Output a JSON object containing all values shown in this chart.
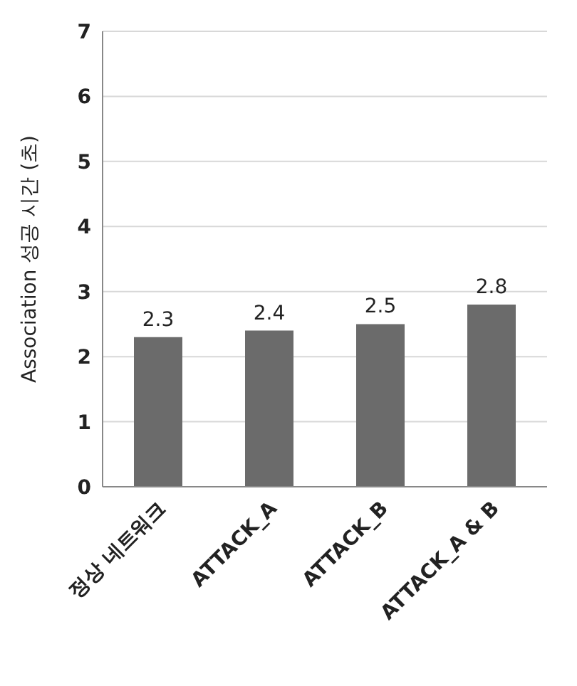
{
  "chart_data": {
    "type": "bar",
    "ylabel": "Association 성공 시간 (초)",
    "categories": [
      "정상 네트워크",
      "ATTACK_A",
      "ATTACK_B",
      "ATTACK_A & B"
    ],
    "values": [
      2.3,
      2.4,
      2.5,
      2.8
    ],
    "color": "#6b6b6b",
    "ylim": [
      0,
      7
    ],
    "yticks": [
      0,
      1,
      2,
      3,
      4,
      5,
      6,
      7
    ],
    "grid": "y",
    "data_labels": true
  }
}
